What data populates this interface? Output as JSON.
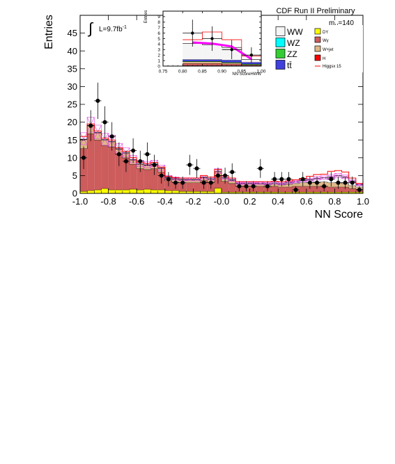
{
  "header": {
    "experiment": "CDF Run II Preliminary",
    "luminosity": "L=9.7fb",
    "luminosity_sup": "-1",
    "mass_label_main": "m",
    "mass_label_sub": "H",
    "mass_label_value": "=140"
  },
  "legend": [
    {
      "label": "WW",
      "color": "#f5f5f5"
    },
    {
      "label": "DY",
      "color": "#ffff00"
    },
    {
      "label": "WZ",
      "color": "#00ffff"
    },
    {
      "label": "Wγ",
      "color": "#cd5c5c"
    },
    {
      "label": "ZZ",
      "color": "#33cc33"
    },
    {
      "label": "W+jet",
      "color": "#deb887"
    },
    {
      "label": "tt̄",
      "color": "#4040dd"
    },
    {
      "label": "H",
      "color": "#ff0000"
    },
    {
      "label": "Higgsx 15",
      "color": "#ff0000"
    }
  ],
  "chart_data": [
    {
      "type": "area",
      "xlabel": "NN Score",
      "ylabel": "Entries",
      "xlim": [
        -1.0,
        1.0
      ],
      "ylim": [
        0,
        50
      ],
      "xticks": [
        "-1.0",
        "-0.8",
        "-0.6",
        "-0.4",
        "-0.2",
        "-0.0",
        "0.2",
        "0.4",
        "0.6",
        "0.8",
        "1.0"
      ],
      "yticks": [
        "0",
        "5",
        "10",
        "15",
        "20",
        "25",
        "30",
        "35",
        "40",
        "45"
      ],
      "bin_edges": [
        -1.0,
        -0.95,
        -0.9,
        -0.85,
        -0.8,
        -0.75,
        -0.7,
        -0.65,
        -0.6,
        -0.55,
        -0.5,
        -0.45,
        -0.4,
        -0.35,
        -0.3,
        -0.25,
        -0.2,
        -0.15,
        -0.1,
        -0.05,
        0.0,
        0.05,
        0.1,
        0.15,
        0.2,
        0.25,
        0.3,
        0.35,
        0.4,
        0.45,
        0.5,
        0.55,
        0.6,
        0.65,
        0.7,
        0.75,
        0.8,
        0.85,
        0.9,
        0.95,
        1.0
      ],
      "stack": [
        {
          "name": "DY",
          "color": "#ffff00",
          "values": [
            0.6,
            0.8,
            1.0,
            1.4,
            1.0,
            1.0,
            1.0,
            1.2,
            1.0,
            1.2,
            1.0,
            1.0,
            0.8,
            0.8,
            0.6,
            0.6,
            0.6,
            0.6,
            0.6,
            1.5,
            0.4,
            0.4,
            0.4,
            0.4,
            0.4,
            0.4,
            0.4,
            0.4,
            0.4,
            0.4,
            0.4,
            0.4,
            0.4,
            0.4,
            0.4,
            0.4,
            0.4,
            0.4,
            0.4,
            0.4
          ]
        },
        {
          "name": "Wγ",
          "color": "#cd5c5c",
          "values": [
            12,
            16,
            14,
            12,
            12,
            10,
            9,
            7,
            6,
            5.5,
            6,
            5,
            2.8,
            2.4,
            2.4,
            2.4,
            2.4,
            3,
            2.6,
            3.5,
            3,
            2.4,
            1.6,
            1.6,
            1.6,
            1.6,
            1.4,
            1.6,
            1.4,
            1.4,
            1.6,
            1.6,
            1.6,
            1.6,
            1.6,
            1.4,
            1.4,
            1.4,
            1.0,
            0.8
          ]
        },
        {
          "name": "W+jet",
          "color": "#deb887",
          "values": [
            2.5,
            2.2,
            2.0,
            1.6,
            1.5,
            1.4,
            1.3,
            1.2,
            1.2,
            1.2,
            1.2,
            1.0,
            0.8,
            0.8,
            0.8,
            0.8,
            0.8,
            0.8,
            0.8,
            1.0,
            0.8,
            0.8,
            0.6,
            0.6,
            0.6,
            0.6,
            0.6,
            0.6,
            0.6,
            0.8,
            0.8,
            1.0,
            1.0,
            1.2,
            1.2,
            1.2,
            1.2,
            1.0,
            0.8,
            0.6
          ]
        },
        {
          "name": "WW",
          "color": "#f5f5f5",
          "values": [
            0.1,
            0.1,
            0.1,
            0.1,
            0.1,
            0.1,
            0.1,
            0.1,
            0.1,
            0.1,
            0.1,
            0.1,
            0.1,
            0.1,
            0.1,
            0.1,
            0.1,
            0.1,
            0.1,
            0.2,
            0.2,
            0.2,
            0.2,
            0.2,
            0.2,
            0.2,
            0.3,
            0.3,
            0.3,
            0.4,
            0.5,
            0.6,
            0.8,
            1.0,
            1.2,
            1.6,
            2.0,
            1.8,
            1.2,
            0.6
          ]
        }
      ],
      "signal_x15": {
        "name": "Higgsx 15",
        "color": "#ff0000",
        "values": [
          16,
          19.5,
          17.5,
          15.5,
          15,
          12.8,
          11.8,
          10,
          8.7,
          8.4,
          8.7,
          7.4,
          4.8,
          4.4,
          4.3,
          4.3,
          4.3,
          5,
          4.6,
          6.7,
          4.9,
          4.3,
          3.3,
          3.3,
          3.3,
          3.3,
          3.3,
          3.4,
          3.3,
          3.5,
          3.8,
          4.2,
          4.8,
          5.3,
          5.4,
          6.2,
          6.4,
          6,
          4.3,
          2.8
        ]
      },
      "data_points": {
        "name": "Data",
        "x": [
          -0.975,
          -0.925,
          -0.875,
          -0.825,
          -0.775,
          -0.725,
          -0.675,
          -0.625,
          -0.575,
          -0.525,
          -0.475,
          -0.425,
          -0.375,
          -0.325,
          -0.275,
          -0.225,
          -0.175,
          -0.125,
          -0.075,
          -0.025,
          0.025,
          0.075,
          0.125,
          0.175,
          0.225,
          0.275,
          0.325,
          0.375,
          0.425,
          0.475,
          0.525,
          0.575,
          0.625,
          0.675,
          0.725,
          0.775,
          0.825,
          0.875,
          0.925,
          0.975
        ],
        "y": [
          10,
          19,
          26,
          20,
          16,
          11,
          9,
          12,
          9,
          11,
          8,
          5,
          4,
          3,
          3,
          8,
          7,
          3,
          3,
          5,
          5,
          6,
          2,
          2,
          2,
          7,
          2,
          4,
          4,
          4,
          1,
          4,
          3,
          3,
          2,
          4,
          3,
          3,
          3,
          1
        ]
      }
    },
    {
      "type": "area",
      "xlabel": "NN ScoreHWW",
      "ylabel": "Entries",
      "xlim": [
        0.75,
        1.0
      ],
      "ylim": [
        0,
        10
      ],
      "xticks": [
        "0.75",
        "0.80",
        "0.85",
        "0.90",
        "0.95",
        "1.00"
      ],
      "yticks": [
        "0",
        "1",
        "2",
        "3",
        "4",
        "5",
        "6",
        "7",
        "8",
        "9"
      ],
      "bin_edges": [
        0.8,
        0.85,
        0.9,
        0.95,
        1.0
      ],
      "stack": [
        {
          "name": "DY",
          "color": "#ffff00",
          "values": [
            0.1,
            0.1,
            0.1,
            0.1
          ]
        },
        {
          "name": "Wγ",
          "color": "#cd5c5c",
          "values": [
            0.4,
            0.4,
            0.3,
            0.1
          ]
        },
        {
          "name": "W+jet",
          "color": "#deb887",
          "values": [
            0.3,
            0.3,
            0.2,
            0.1
          ]
        },
        {
          "name": "ZZ",
          "color": "#33cc33",
          "values": [
            0.1,
            0.1,
            0.1,
            0.1
          ]
        },
        {
          "name": "tt̄",
          "color": "#4040dd",
          "values": [
            0.3,
            0.3,
            0.4,
            0.3
          ]
        },
        {
          "name": "WW",
          "color": "#f5f5f5",
          "values": [
            2.9,
            2.7,
            2.3,
            0.5
          ]
        }
      ],
      "signal_x15": {
        "name": "Higgsx 15",
        "color": "#ff0000",
        "values": [
          4.8,
          6.2,
          4.8,
          1.8
        ]
      },
      "data_points": {
        "name": "Data",
        "x": [
          0.825,
          0.875,
          0.925,
          0.975
        ],
        "y": [
          6,
          5,
          3,
          2
        ]
      }
    }
  ]
}
